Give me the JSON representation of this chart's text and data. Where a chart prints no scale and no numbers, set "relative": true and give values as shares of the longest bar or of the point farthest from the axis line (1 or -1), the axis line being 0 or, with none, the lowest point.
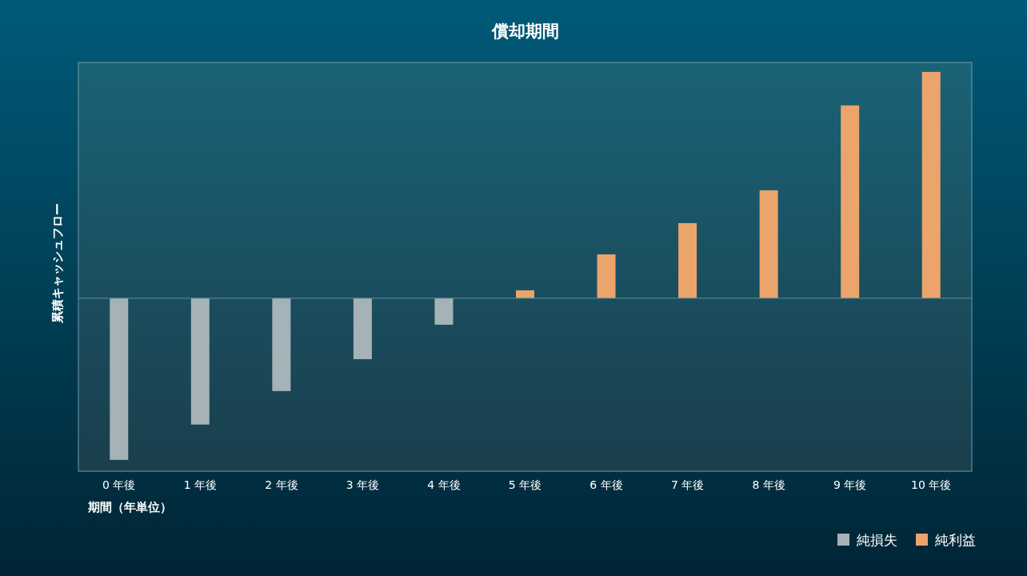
{
  "chart_data": {
    "type": "bar",
    "title": "償却期間",
    "xlabel": "期間（年単位）",
    "ylabel": "累積キャッシュフロー",
    "relative": true,
    "stacked": true,
    "legend": "bottom right",
    "ref_lines": [
      {
        "axis": "y",
        "value": 0,
        "color": "#5f8e9c"
      }
    ],
    "grid": false,
    "categories": [
      "0 年後",
      "1 年後",
      "2 年後",
      "3 年後",
      "4 年後",
      "5 年後",
      "6 年後",
      "7 年後",
      "8 年後",
      "9 年後",
      "10 年後"
    ],
    "series": [
      {
        "name": "純損失",
        "color": "#a5b2b8",
        "values": [
          -0.714,
          -0.558,
          -0.41,
          -0.269,
          -0.117,
          null,
          null,
          null,
          null,
          null,
          null
        ]
      },
      {
        "name": "純利益",
        "color": "#eba46b",
        "values": [
          null,
          null,
          null,
          null,
          null,
          0.035,
          0.194,
          0.332,
          0.477,
          0.852,
          1
        ]
      }
    ]
  }
}
